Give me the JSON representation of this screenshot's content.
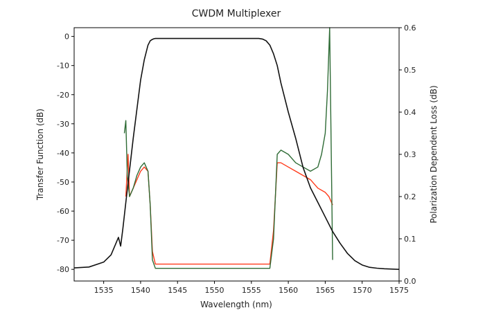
{
  "chart_data": {
    "type": "line",
    "title": "CWDM Multiplexer",
    "xlabel": "Wavelength (nm)",
    "ylabel_left": "Transfer Function (dB)",
    "ylabel_right": "Polarization Dependent Loss (dB)",
    "xlim": [
      1531,
      1575
    ],
    "ylim_left": [
      -84,
      3
    ],
    "ylim_right": [
      0.0,
      0.6
    ],
    "x_ticks": [
      1535,
      1540,
      1545,
      1550,
      1555,
      1560,
      1565,
      1570,
      1575
    ],
    "y_left_ticks": [
      0,
      -10,
      -20,
      -30,
      -40,
      -50,
      -60,
      -70,
      -80
    ],
    "y_right_ticks": [
      "0.0",
      "0.1",
      "0.2",
      "0.3",
      "0.4",
      "0.5",
      "0.6"
    ],
    "grid": false,
    "legend": "none",
    "series": [
      {
        "axis": "left",
        "color": "#111111",
        "x": [
          1531,
          1533,
          1535,
          1536,
          1536.5,
          1537,
          1537.3,
          1537.6,
          1538,
          1538.5,
          1539,
          1539.5,
          1540,
          1540.5,
          1541,
          1541.3,
          1541.6,
          1541.8,
          1542,
          1545,
          1550,
          1555,
          1556,
          1556.5,
          1557,
          1557.5,
          1558,
          1558.5,
          1559,
          1560,
          1561,
          1562,
          1563,
          1564,
          1565,
          1566,
          1567,
          1568,
          1569,
          1570,
          1571,
          1572,
          1573,
          1575
        ],
        "values": [
          -79.5,
          -79.2,
          -77.5,
          -75,
          -72,
          -69,
          -72,
          -66,
          -57,
          -46,
          -35,
          -25,
          -15,
          -8,
          -3,
          -1.5,
          -1,
          -0.8,
          -0.7,
          -0.7,
          -0.7,
          -0.7,
          -0.7,
          -0.9,
          -1.5,
          -3,
          -6,
          -10,
          -16,
          -26,
          -35,
          -45,
          -52,
          -57,
          -62,
          -67,
          -71,
          -74.5,
          -77,
          -78.5,
          -79.3,
          -79.6,
          -79.8,
          -80
        ]
      },
      {
        "axis": "right",
        "color": "#ff3a1a",
        "x": [
          1538,
          1538.3,
          1538.5,
          1539,
          1539.5,
          1540,
          1540.5,
          1541,
          1541.3,
          1541.6,
          1542,
          1545,
          1550,
          1555,
          1557.5,
          1558,
          1558.5,
          1559,
          1560,
          1561,
          1562,
          1563,
          1564,
          1565,
          1565.5,
          1566
        ],
        "values": [
          0.2,
          0.3,
          0.2,
          0.22,
          0.24,
          0.26,
          0.27,
          0.26,
          0.18,
          0.07,
          0.04,
          0.04,
          0.04,
          0.04,
          0.04,
          0.12,
          0.28,
          0.28,
          0.27,
          0.26,
          0.25,
          0.24,
          0.22,
          0.21,
          0.2,
          0.18
        ]
      },
      {
        "axis": "right",
        "color": "#2e6b35",
        "x": [
          1537.8,
          1538,
          1538.2,
          1538.5,
          1539,
          1539.5,
          1540,
          1540.5,
          1541,
          1541.3,
          1541.6,
          1542,
          1545,
          1550,
          1555,
          1557.5,
          1558,
          1558.5,
          1559,
          1560,
          1561,
          1562,
          1563,
          1564,
          1564.5,
          1565,
          1565.3,
          1565.6,
          1566
        ],
        "values": [
          0.35,
          0.38,
          0.25,
          0.2,
          0.22,
          0.25,
          0.27,
          0.28,
          0.26,
          0.18,
          0.05,
          0.03,
          0.03,
          0.03,
          0.03,
          0.03,
          0.1,
          0.3,
          0.31,
          0.3,
          0.28,
          0.27,
          0.26,
          0.27,
          0.3,
          0.35,
          0.45,
          0.6,
          0.05
        ]
      }
    ]
  }
}
